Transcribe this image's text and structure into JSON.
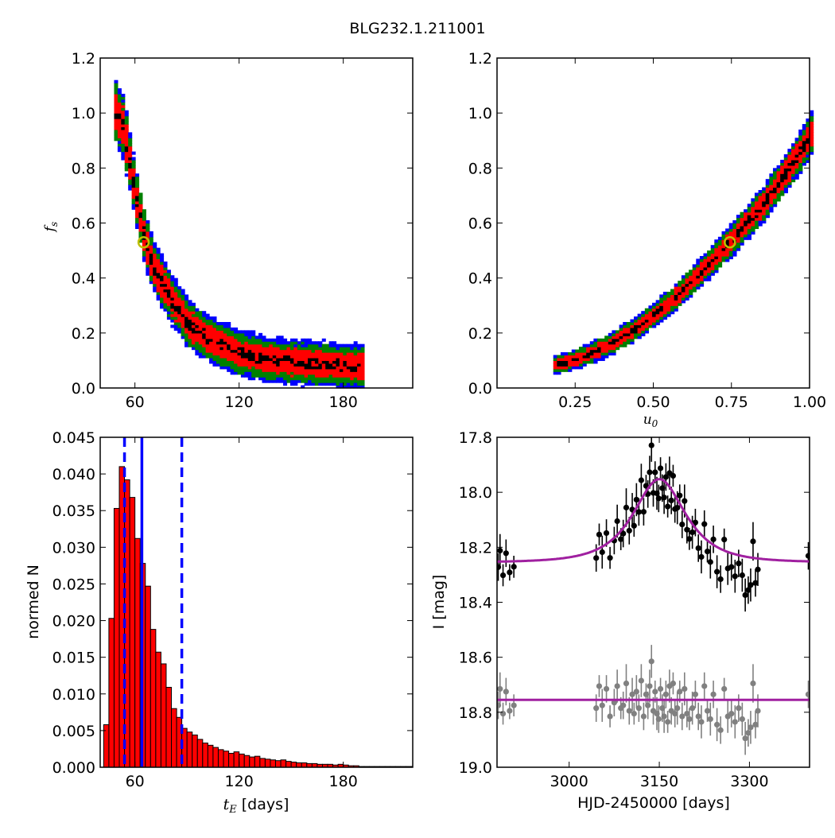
{
  "figure": {
    "title": "BLG232.1.211001"
  },
  "colors": {
    "sigma1": "#000000",
    "sigma2": "#ff0000",
    "sigma3": "#008000",
    "sigma4": "#0000ff",
    "marker": "#bfbf00",
    "model": "#a020a0",
    "residual": "#808080",
    "median_line": "#0000ff"
  },
  "chart_data": [
    {
      "id": "panel-tE-fs",
      "type": "heatmap",
      "xlabel": "",
      "ylabel": "f_s",
      "xlim": [
        40,
        220
      ],
      "ylim": [
        0,
        1.2
      ],
      "xticks": [
        "60",
        "120",
        "180"
      ],
      "yticks": [
        "0.0",
        "0.2",
        "0.4",
        "0.6",
        "0.8",
        "1.0",
        "1.2"
      ],
      "best_fit": {
        "x": 65,
        "y": 0.53
      },
      "ridge": [
        [
          48,
          1.0
        ],
        [
          52,
          0.95
        ],
        [
          56,
          0.82
        ],
        [
          60,
          0.68
        ],
        [
          64,
          0.56
        ],
        [
          68,
          0.47
        ],
        [
          72,
          0.41
        ],
        [
          80,
          0.32
        ],
        [
          90,
          0.23
        ],
        [
          100,
          0.18
        ],
        [
          110,
          0.15
        ],
        [
          120,
          0.12
        ],
        [
          135,
          0.1
        ],
        [
          150,
          0.09
        ],
        [
          170,
          0.08
        ],
        [
          190,
          0.075
        ]
      ]
    },
    {
      "id": "panel-u0-fs",
      "type": "heatmap",
      "xlabel": "u_0",
      "ylabel": "",
      "xlim": [
        0.0,
        1.0
      ],
      "ylim": [
        0,
        1.2
      ],
      "xticks": [
        "0.25",
        "0.50",
        "0.75",
        "1.00"
      ],
      "yticks": [
        "0.0",
        "0.2",
        "0.4",
        "0.6",
        "0.8",
        "1.0",
        "1.2"
      ],
      "best_fit": {
        "x": 0.745,
        "y": 0.53
      },
      "ridge": [
        [
          0.18,
          0.08
        ],
        [
          0.25,
          0.1
        ],
        [
          0.35,
          0.15
        ],
        [
          0.45,
          0.22
        ],
        [
          0.55,
          0.31
        ],
        [
          0.65,
          0.42
        ],
        [
          0.75,
          0.54
        ],
        [
          0.85,
          0.67
        ],
        [
          0.95,
          0.83
        ],
        [
          1.0,
          0.92
        ]
      ]
    },
    {
      "id": "panel-tE-hist",
      "type": "bar",
      "xlabel": "t_E [days]",
      "ylabel": "normed N",
      "xlim": [
        40,
        220
      ],
      "ylim": [
        0,
        0.045
      ],
      "xticks": [
        "60",
        "120",
        "180"
      ],
      "yticks": [
        "0.000",
        "0.005",
        "0.010",
        "0.015",
        "0.020",
        "0.025",
        "0.030",
        "0.035",
        "0.040",
        "0.045"
      ],
      "bin_width": 3,
      "bin_start": 42,
      "values": [
        0.0058,
        0.0203,
        0.0353,
        0.041,
        0.0392,
        0.0368,
        0.0312,
        0.0278,
        0.0247,
        0.0188,
        0.0157,
        0.0141,
        0.0109,
        0.008,
        0.0068,
        0.0053,
        0.0048,
        0.0044,
        0.0038,
        0.0033,
        0.003,
        0.0027,
        0.0024,
        0.0022,
        0.0019,
        0.0021,
        0.0018,
        0.0016,
        0.0014,
        0.0015,
        0.0012,
        0.0011,
        0.001,
        0.0009,
        0.001,
        0.0008,
        0.0007,
        0.0006,
        0.0006,
        0.0005,
        0.0005,
        0.0004,
        0.0004,
        0.0004,
        0.0003,
        0.0004,
        0.0003,
        0.0002,
        0.0002,
        0.0001,
        0.0001,
        0.0001,
        0.0001,
        0.0001,
        0.0001,
        0.0001,
        0.0001,
        0.0001,
        0.0001,
        0.0001
      ],
      "median": 64,
      "conf_interval": [
        54,
        87
      ]
    },
    {
      "id": "panel-lightcurve",
      "type": "scatter",
      "xlabel": "HJD-2450000 [days]",
      "ylabel": "I [mag]",
      "xlim": [
        2880,
        3400
      ],
      "ylim": [
        19.0,
        17.8
      ],
      "xticks": [
        "3000",
        "3150",
        "3300"
      ],
      "yticks": [
        "17.8",
        "18.0",
        "18.2",
        "18.4",
        "18.6",
        "18.8",
        "19.0"
      ],
      "model": {
        "t0": 3150,
        "tE": 64,
        "u0": 0.745,
        "fs": 0.53,
        "baseline": 18.255
      },
      "residual_offset": 0.5,
      "data_times": [
        2882,
        2885,
        2890,
        2895,
        2901,
        2908,
        3045,
        3050,
        3055,
        3062,
        3068,
        3075,
        3080,
        3086,
        3090,
        3095,
        3100,
        3105,
        3108,
        3112,
        3116,
        3120,
        3124,
        3128,
        3131,
        3134,
        3137,
        3140,
        3143,
        3146,
        3149,
        3152,
        3155,
        3158,
        3161,
        3164,
        3167,
        3170,
        3173,
        3176,
        3180,
        3184,
        3188,
        3192,
        3196,
        3200,
        3205,
        3210,
        3215,
        3220,
        3225,
        3230,
        3235,
        3240,
        3246,
        3252,
        3258,
        3264,
        3270,
        3276,
        3282,
        3288,
        3293,
        3298,
        3302,
        3306,
        3310,
        3314,
        3398
      ],
      "data_noise": [
        0.02,
        -0.04,
        0.05,
        -0.03,
        0.04,
        0.02,
        0.03,
        -0.05,
        0.02,
        -0.04,
        0.06,
        0.01,
        -0.05,
        0.03,
        0.02,
        -0.06,
        0.04,
        -0.02,
        0.05,
        -0.03,
        0.03,
        -0.07,
        0.06,
        -0.02,
        0.02,
        -0.05,
        -0.14,
        0.04,
        -0.03,
        0.05,
        0.07,
        -0.04,
        0.03,
        0.06,
        -0.02,
        0.08,
        -0.05,
        0.04,
        -0.06,
        0.05,
        0.03,
        -0.03,
        0.06,
        -0.04,
        0.05,
        0.07,
        0.03,
        -0.02,
        0.06,
        0.08,
        -0.05,
        0.04,
        0.07,
        -0.02,
        0.09,
        0.11,
        -0.04,
        0.06,
        0.05,
        0.08,
        0.03,
        0.07,
        0.14,
        0.12,
        0.1,
        -0.06,
        0.09,
        0.04,
        -0.02
      ],
      "data_err": [
        0.05,
        0.06,
        0.04,
        0.05,
        0.03,
        0.04,
        0.05,
        0.04,
        0.06,
        0.05,
        0.04,
        0.05,
        0.06,
        0.04,
        0.05,
        0.07,
        0.05,
        0.06,
        0.04,
        0.06,
        0.05,
        0.06,
        0.05,
        0.04,
        0.05,
        0.06,
        0.06,
        0.05,
        0.04,
        0.06,
        0.05,
        0.04,
        0.05,
        0.06,
        0.05,
        0.04,
        0.06,
        0.05,
        0.04,
        0.05,
        0.06,
        0.04,
        0.05,
        0.06,
        0.05,
        0.04,
        0.06,
        0.05,
        0.05,
        0.06,
        0.05,
        0.04,
        0.06,
        0.05,
        0.06,
        0.05,
        0.04,
        0.06,
        0.05,
        0.06,
        0.05,
        0.06,
        0.06,
        0.05,
        0.06,
        0.07,
        0.05,
        0.06,
        0.05
      ]
    }
  ]
}
